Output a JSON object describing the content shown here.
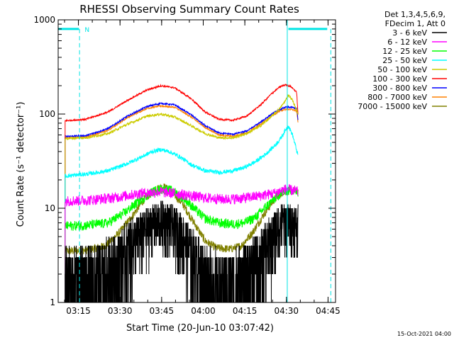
{
  "chart_data": {
    "type": "line",
    "title": "RHESSI Observing Summary Count Rates",
    "xlabel": "Start Time (20-Jun-10 03:07:42)",
    "ylabel": "Count Rate (s⁻¹ detector⁻¹)",
    "yscale": "log",
    "ylim": [
      1,
      1000
    ],
    "xlim_minutes": [
      0,
      100
    ],
    "x_ticks": [
      {
        "label": "03:15",
        "t": 7.3
      },
      {
        "label": "03:30",
        "t": 22.3
      },
      {
        "label": "03:45",
        "t": 37.3
      },
      {
        "label": "04:00",
        "t": 52.3
      },
      {
        "label": "04:15",
        "t": 67.3
      },
      {
        "label": "04:30",
        "t": 82.3
      },
      {
        "label": "04:45",
        "t": 97.3
      }
    ],
    "y_ticks": [
      {
        "label": "1",
        "v": 1
      },
      {
        "label": "10",
        "v": 10
      },
      {
        "label": "100",
        "v": 100
      },
      {
        "label": "1000",
        "v": 1000
      }
    ],
    "legend_header": [
      "Det 1,3,4,5,6,9,",
      "FDecim 1, Att 0"
    ],
    "legend_position": "outside-right",
    "series": [
      {
        "name": "3 - 6 keV",
        "color": "#000000",
        "noise": 0.9,
        "t": [
          2.5,
          8,
          12,
          15,
          18,
          22,
          26,
          30,
          34,
          37,
          40,
          43,
          46,
          49,
          52,
          56,
          60,
          64,
          68,
          71,
          74,
          77,
          79,
          81,
          83,
          85,
          86.5
        ],
        "v": [
          1.6,
          1.7,
          1.8,
          2.0,
          2.3,
          3.0,
          4.2,
          5.5,
          7.0,
          7.5,
          7.0,
          6.0,
          4.5,
          3.0,
          2.0,
          1.6,
          1.5,
          1.6,
          2.0,
          2.6,
          3.5,
          5.0,
          6.2,
          7.3,
          7.3,
          7.0,
          6.5
        ]
      },
      {
        "name": "6 - 12 keV",
        "color": "#ff00ff",
        "noise": 0.13,
        "t": [
          2.5,
          10,
          20,
          30,
          37,
          44,
          52,
          60,
          66,
          72,
          78,
          82,
          85,
          86.5
        ],
        "v": [
          12,
          12.2,
          13,
          14.5,
          15,
          14.2,
          13,
          12.5,
          12.8,
          13.5,
          14.5,
          16,
          15.5,
          15
        ]
      },
      {
        "name": "12 - 25 keV",
        "color": "#00ff00",
        "noise": 0.12,
        "t": [
          2.5,
          10,
          18,
          24,
          30,
          34,
          37,
          41,
          45,
          49,
          53,
          58,
          63,
          67,
          71,
          75,
          79,
          82,
          84,
          86.5
        ],
        "v": [
          6.5,
          6.6,
          7.0,
          9.0,
          12.5,
          15,
          16,
          15.5,
          13,
          10,
          7.8,
          7.0,
          6.8,
          7.0,
          8.0,
          10.5,
          13.5,
          15.5,
          15.5,
          15
        ]
      },
      {
        "name": "25 - 50 keV",
        "color": "#00ffff",
        "noise": 0.05,
        "t": [
          2.5,
          10,
          18,
          24,
          30,
          34,
          37,
          40,
          44,
          48,
          53,
          58,
          63,
          67,
          71,
          75,
          78,
          80,
          82,
          83,
          84.5,
          86.5
        ],
        "v": [
          22,
          23,
          25,
          29,
          35,
          40,
          42,
          40,
          35,
          29,
          25,
          24,
          25,
          27,
          31,
          38,
          46,
          54,
          68,
          75,
          60,
          36
        ]
      },
      {
        "name": "50 - 100 keV",
        "color": "#cccc00",
        "noise": 0.03,
        "t": [
          2.5,
          10,
          18,
          25,
          32,
          37,
          42,
          48,
          53,
          58,
          63,
          68,
          73,
          77,
          80,
          82,
          83,
          84.5,
          86.5
        ],
        "v": [
          55,
          56,
          62,
          78,
          95,
          100,
          93,
          75,
          62,
          56,
          56,
          62,
          75,
          95,
          115,
          140,
          160,
          140,
          100
        ]
      },
      {
        "name": "100 - 300 keV",
        "color": "#ff0000",
        "noise": 0.02,
        "t": [
          2.5,
          10,
          18,
          25,
          32,
          37,
          42,
          48,
          53,
          58,
          63,
          68,
          73,
          77,
          80,
          82,
          84,
          86,
          86.5
        ],
        "v": [
          85,
          88,
          105,
          140,
          180,
          200,
          190,
          145,
          105,
          88,
          86,
          95,
          125,
          165,
          195,
          205,
          195,
          170,
          95
        ]
      },
      {
        "name": "300 - 800 keV",
        "color": "#0000ff",
        "noise": 0.02,
        "t": [
          2.5,
          10,
          18,
          25,
          32,
          37,
          42,
          48,
          53,
          58,
          63,
          68,
          73,
          77,
          80,
          82,
          84,
          86,
          86.5
        ],
        "v": [
          58,
          59,
          70,
          95,
          120,
          130,
          125,
          98,
          75,
          63,
          61,
          66,
          82,
          100,
          112,
          118,
          118,
          115,
          85
        ]
      },
      {
        "name": "800 - 7000 keV",
        "color": "#ff8000",
        "noise": 0.02,
        "t": [
          2.5,
          10,
          18,
          25,
          32,
          37,
          42,
          48,
          53,
          58,
          63,
          68,
          73,
          77,
          80,
          82,
          84,
          86,
          86.5
        ],
        "v": [
          56,
          57,
          67,
          92,
          115,
          122,
          118,
          93,
          72,
          60,
          58,
          63,
          78,
          96,
          108,
          112,
          112,
          108,
          80
        ]
      },
      {
        "name": "7000 - 15000 keV",
        "color": "#808000",
        "noise": 0.1,
        "t": [
          2.5,
          10,
          17,
          22,
          27,
          31,
          35,
          38,
          41,
          45,
          49,
          53,
          57,
          62,
          66,
          70,
          74,
          78,
          81,
          84,
          86.5
        ],
        "v": [
          3.5,
          3.6,
          4.0,
          5.5,
          8.5,
          12.5,
          16,
          17,
          15,
          11,
          7,
          4.5,
          3.8,
          3.7,
          4.0,
          5.5,
          8.5,
          12.5,
          15,
          15.5,
          15
        ]
      }
    ],
    "annotations": {
      "night_bar_text": "N",
      "night_bar_value": 800,
      "night_bars": [
        [
          0,
          7.5
        ],
        [
          83,
          97
        ]
      ],
      "saa_solid_lines": [
        82.6
      ],
      "saa_dashed_lines": [
        7.7,
        98.3
      ]
    },
    "timestamp": "15-Oct-2021 04:00"
  }
}
